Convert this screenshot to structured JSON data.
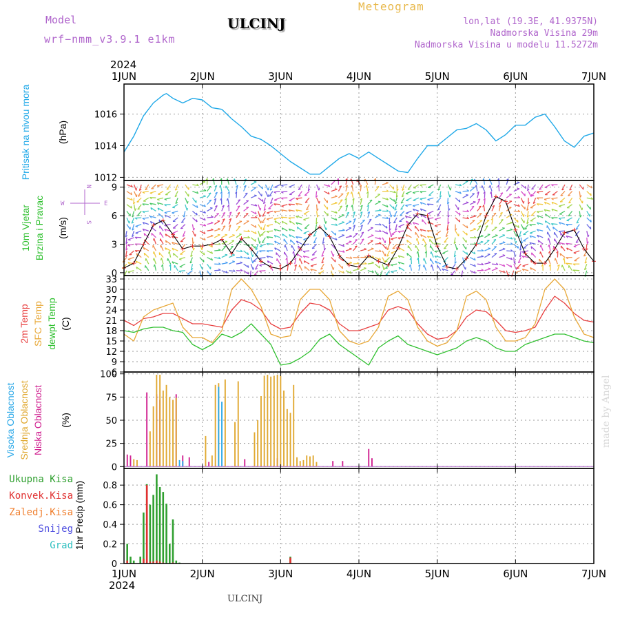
{
  "header": {
    "model_label": "Model",
    "model_name": "wrf−nmm_v3.9.1  e1km",
    "station": "ULCINJ",
    "title": "Meteogram",
    "lonlat": "lon,lat (19.3E, 41.9375N)",
    "altitude": "Nadmorska Visina 29m",
    "model_altitude": "Nadmorska Visina u modelu 11.5272m"
  },
  "footer": {
    "station": "ULCINJ",
    "watermark": "made by Angel"
  },
  "colors": {
    "pressure": "#1ea8e8",
    "temp2m": "#e84040",
    "sfc_temp": "#e8a838",
    "dewpt": "#30c030",
    "cloud_high": "#2aa8e8",
    "cloud_mid": "#e0a830",
    "cloud_low": "#d02090",
    "precip_total": "#30a030",
    "precip_conv": "#e03030",
    "precip_frozen": "#f08030",
    "snow": "#5050e0",
    "hail": "#30c0c0",
    "label_purple": "#b066cc"
  },
  "chart_data": [
    {
      "id": "pressure",
      "type": "line",
      "ylabel_title": "Pritisak na nivou mora",
      "ylabel_unit": "(hPa)",
      "ylim": [
        1011.8,
        1017.9
      ],
      "yticks": [
        1012,
        1014,
        1016
      ],
      "x_start_label": "2024",
      "x_labels": [
        "1JUN",
        "2JUN",
        "3JUN",
        "4JUN",
        "5JUN",
        "6JUN",
        "7JUN"
      ],
      "x_hours": [
        0,
        24,
        48,
        72,
        96,
        120,
        144
      ],
      "series": [
        {
          "x": [
            0,
            3,
            6,
            9,
            12,
            13,
            15,
            18,
            21,
            24,
            27,
            30,
            33,
            36,
            39,
            42,
            45,
            48,
            51,
            54,
            57,
            60,
            63,
            66,
            69,
            72,
            75,
            78,
            81,
            84,
            87,
            90,
            93,
            96,
            99,
            102,
            105,
            108,
            111,
            114,
            117,
            120,
            123,
            126,
            129,
            132,
            135,
            138,
            141,
            144
          ],
          "y": [
            1013.6,
            1014.6,
            1015.9,
            1016.7,
            1017.2,
            1017.3,
            1017.0,
            1016.7,
            1017.0,
            1016.9,
            1016.4,
            1016.3,
            1015.7,
            1015.2,
            1014.6,
            1014.4,
            1014.0,
            1013.5,
            1013.0,
            1012.6,
            1012.2,
            1012.2,
            1012.7,
            1013.2,
            1013.5,
            1013.2,
            1013.6,
            1013.2,
            1012.8,
            1012.4,
            1012.3,
            1013.2,
            1014.0,
            1014.0,
            1014.5,
            1015.0,
            1015.1,
            1015.4,
            1015.0,
            1014.3,
            1014.7,
            1015.3,
            1015.3,
            1015.8,
            1016.0,
            1015.2,
            1014.3,
            1013.9,
            1014.6,
            1014.8
          ]
        }
      ]
    },
    {
      "id": "wind",
      "type": "line",
      "ylabel_title": "10m Vjetar",
      "ylabel_title2": "Brzina i Pravac",
      "ylabel_unit": "(m/s)",
      "compass": {
        "n": "N",
        "s": "S",
        "w": "W",
        "e": "E"
      },
      "ylim": [
        -0.3,
        9.7
      ],
      "yticks": [
        0,
        3,
        6,
        9
      ],
      "series": [
        {
          "name": "speed",
          "x": [
            0,
            3,
            6,
            9,
            12,
            15,
            18,
            21,
            24,
            27,
            30,
            33,
            36,
            39,
            42,
            45,
            48,
            51,
            54,
            57,
            60,
            63,
            66,
            69,
            72,
            75,
            78,
            81,
            84,
            87,
            90,
            93,
            96,
            99,
            102,
            105,
            108,
            111,
            114,
            117,
            120,
            123,
            126,
            129,
            132,
            135,
            138,
            141,
            144
          ],
          "y": [
            0.5,
            1.0,
            3.0,
            5.0,
            5.5,
            4.0,
            2.5,
            2.8,
            2.8,
            3.0,
            3.5,
            2.0,
            3.6,
            2.5,
            1.2,
            0.6,
            0.4,
            1.0,
            2.5,
            4.0,
            4.8,
            3.8,
            1.8,
            0.8,
            0.6,
            1.8,
            1.2,
            0.8,
            2.6,
            5.0,
            6.2,
            6.0,
            2.8,
            0.6,
            0.4,
            1.5,
            3.0,
            6.0,
            8.0,
            7.5,
            4.5,
            2.0,
            1.0,
            1.0,
            2.5,
            4.2,
            4.5,
            2.5,
            1.2
          ]
        }
      ]
    },
    {
      "id": "temperature",
      "type": "line",
      "ylabel_title": "2m Temp",
      "ylabel_title2": "SFC Temp",
      "ylabel_title3": "dewpt Temp",
      "ylabel_unit": "(C)",
      "ylim": [
        6,
        34
      ],
      "yticks": [
        6,
        9,
        12,
        15,
        18,
        21,
        24,
        27,
        30,
        33
      ],
      "x": [
        0,
        3,
        6,
        9,
        12,
        15,
        18,
        21,
        24,
        27,
        30,
        33,
        36,
        39,
        42,
        45,
        48,
        51,
        54,
        57,
        60,
        63,
        66,
        69,
        72,
        75,
        78,
        81,
        84,
        87,
        90,
        93,
        96,
        99,
        102,
        105,
        108,
        111,
        114,
        117,
        120,
        123,
        126,
        129,
        132,
        135,
        138,
        141,
        144
      ],
      "series": [
        {
          "name": "2m Temp",
          "y": [
            21,
            19.5,
            21.5,
            22,
            23,
            23,
            21.5,
            20,
            20,
            19.5,
            19,
            24,
            27,
            26,
            24,
            20,
            18.5,
            19,
            23,
            26,
            25.5,
            24,
            20,
            18,
            18,
            19,
            20,
            24,
            25,
            24,
            20,
            17,
            15.5,
            16,
            18,
            22,
            24,
            23.5,
            21,
            18,
            17.5,
            18,
            19,
            24,
            28,
            26,
            23,
            21,
            20.5
          ]
        },
        {
          "name": "SFC Temp",
          "y": [
            17,
            15,
            22,
            24,
            25,
            26,
            19,
            16,
            16,
            14.5,
            18,
            30,
            33,
            30,
            25,
            17,
            16,
            16.5,
            27,
            30,
            30,
            27,
            18,
            15,
            14,
            15,
            19,
            28,
            29.5,
            27,
            19,
            15,
            13.5,
            14.5,
            18,
            28,
            29.5,
            27,
            19,
            15,
            15,
            16,
            20,
            30,
            33,
            30,
            22,
            17,
            16
          ]
        },
        {
          "name": "dewpt Temp",
          "y": [
            18,
            17.5,
            18.5,
            19,
            19,
            18,
            17.5,
            14,
            12.5,
            14,
            17,
            16,
            17.5,
            20,
            17,
            14,
            8,
            8.5,
            10,
            12,
            15.5,
            17,
            14,
            12,
            10,
            8,
            13,
            15,
            16.5,
            14,
            13,
            12,
            11,
            12,
            13,
            15,
            16,
            15,
            13,
            12,
            12,
            14,
            15,
            16,
            17,
            17,
            16,
            15,
            14.5
          ]
        }
      ]
    },
    {
      "id": "clouds",
      "type": "bar",
      "ylabel_title": "Visoka Oblacnost",
      "ylabel_title2": "Srednja Oblacnost",
      "ylabel_title3": "Niska Oblacnost",
      "ylabel_unit": "(%)",
      "ylim": [
        -2,
        102
      ],
      "yticks": [
        0,
        25,
        50,
        75,
        100
      ],
      "series": [
        {
          "name": "Niska Oblacnost",
          "x": [
            1,
            2,
            7,
            10,
            11,
            16,
            18,
            20,
            26,
            37,
            47,
            64,
            67,
            75,
            76
          ],
          "y": [
            13,
            12,
            80,
            78,
            72,
            78,
            12,
            10,
            5,
            8,
            9,
            6,
            6,
            19,
            9
          ]
        },
        {
          "name": "Srednja Oblacnost",
          "x": [
            3,
            4,
            8,
            9,
            10,
            11,
            12,
            13,
            14,
            15,
            16,
            25,
            27,
            28,
            29,
            31,
            34,
            35,
            40,
            41,
            42,
            43,
            44,
            45,
            46,
            47,
            48,
            49,
            50,
            51,
            52,
            53,
            54,
            55,
            56,
            57,
            58,
            59
          ],
          "y": [
            8,
            7,
            38,
            65,
            99,
            99,
            82,
            88,
            75,
            72,
            74,
            33,
            12,
            88,
            90,
            94,
            48,
            92,
            37,
            50,
            76,
            98,
            99,
            97,
            98,
            99,
            98,
            82,
            62,
            58,
            88,
            10,
            6,
            7,
            12,
            11,
            12,
            5
          ]
        },
        {
          "name": "Visoka Oblacnost",
          "x": [
            17,
            18,
            29,
            30
          ],
          "y": [
            7,
            6,
            86,
            70
          ]
        }
      ]
    },
    {
      "id": "precip",
      "type": "bar",
      "ylabel_title": "1hr Precip (mm)",
      "legend": [
        "Ukupna Kisa",
        "Konvek.Kisa",
        "Zaledj.Kisa",
        "Snijeg",
        "Grad"
      ],
      "ylim": [
        0,
        0.97
      ],
      "yticks": [
        0,
        0.2,
        0.4,
        0.6,
        0.8
      ],
      "series": [
        {
          "name": "Ukupna Kisa",
          "x": [
            1,
            2,
            3,
            5,
            6,
            7,
            8,
            9,
            10,
            11,
            12,
            13,
            14,
            15,
            16,
            17,
            51
          ],
          "y": [
            0.2,
            0.07,
            0.03,
            0.07,
            0.52,
            0.81,
            0.6,
            0.7,
            0.91,
            0.78,
            0.73,
            0.61,
            0.2,
            0.45,
            0.03,
            0.01,
            0.07
          ]
        },
        {
          "name": "Konvek.Kisa",
          "x": [
            1,
            6,
            7,
            8,
            9,
            10,
            11,
            12,
            15,
            51
          ],
          "y": [
            0.03,
            0.05,
            0.8,
            0.02,
            0.02,
            0.03,
            0.02,
            0.01,
            0.01,
            0.06
          ]
        }
      ]
    }
  ]
}
